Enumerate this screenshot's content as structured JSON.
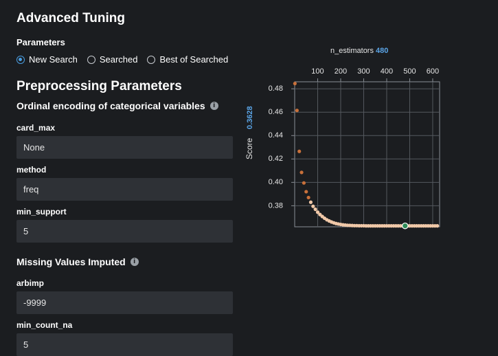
{
  "page": {
    "title": "Advanced Tuning",
    "parameters_label": "Parameters",
    "search_options": [
      {
        "label": "New Search",
        "selected": true
      },
      {
        "label": "Searched",
        "selected": false
      },
      {
        "label": "Best of Searched",
        "selected": false
      }
    ]
  },
  "preprocessing": {
    "title": "Preprocessing Parameters",
    "ordinal": {
      "title": "Ordinal encoding of categorical variables",
      "fields": [
        {
          "label": "card_max",
          "value": "None"
        },
        {
          "label": "method",
          "value": "freq"
        },
        {
          "label": "min_support",
          "value": "5"
        }
      ]
    },
    "missing": {
      "title": "Missing Values Imputed",
      "fields": [
        {
          "label": "arbimp",
          "value": "-9999"
        },
        {
          "label": "min_count_na",
          "value": "5"
        }
      ]
    }
  },
  "info_icon_glyph": "i",
  "chart_header": {
    "param_name": "n_estimators",
    "param_value": "480",
    "score_label": "Score",
    "score_value": "0.3628"
  },
  "colors": {
    "accent_blue": "#5aa4e6",
    "point_early": "#c8703a",
    "point_late": "#f0c8a8",
    "selected_point": "#2e8b57"
  },
  "chart_data": {
    "type": "scatter",
    "xlabel": "n_estimators",
    "ylabel": "Score",
    "x_ticks": [
      100,
      200,
      300,
      400,
      500,
      600
    ],
    "y_ticks": [
      0.38,
      0.4,
      0.42,
      0.44,
      0.46,
      0.48
    ],
    "xlim": [
      0,
      630
    ],
    "ylim": [
      0.362,
      0.486
    ],
    "grid": true,
    "selected": {
      "x": 480,
      "y": 0.3628
    },
    "points": [
      {
        "x": 1,
        "y": 0.4845
      },
      {
        "x": 10,
        "y": 0.4615
      },
      {
        "x": 20,
        "y": 0.4265
      },
      {
        "x": 30,
        "y": 0.4085
      },
      {
        "x": 40,
        "y": 0.3995
      },
      {
        "x": 50,
        "y": 0.392
      },
      {
        "x": 60,
        "y": 0.387
      },
      {
        "x": 70,
        "y": 0.383
      },
      {
        "x": 80,
        "y": 0.3795
      },
      {
        "x": 90,
        "y": 0.377
      },
      {
        "x": 100,
        "y": 0.3745
      },
      {
        "x": 110,
        "y": 0.3725
      },
      {
        "x": 120,
        "y": 0.3708
      },
      {
        "x": 130,
        "y": 0.3693
      },
      {
        "x": 140,
        "y": 0.368
      },
      {
        "x": 150,
        "y": 0.367
      },
      {
        "x": 160,
        "y": 0.3661
      },
      {
        "x": 170,
        "y": 0.3654
      },
      {
        "x": 180,
        "y": 0.3648
      },
      {
        "x": 190,
        "y": 0.3644
      },
      {
        "x": 200,
        "y": 0.364
      },
      {
        "x": 210,
        "y": 0.3637
      },
      {
        "x": 220,
        "y": 0.3635
      },
      {
        "x": 230,
        "y": 0.3633
      },
      {
        "x": 240,
        "y": 0.3632
      },
      {
        "x": 250,
        "y": 0.3631
      },
      {
        "x": 260,
        "y": 0.363
      },
      {
        "x": 270,
        "y": 0.363
      },
      {
        "x": 280,
        "y": 0.3629
      },
      {
        "x": 290,
        "y": 0.3629
      },
      {
        "x": 300,
        "y": 0.3629
      },
      {
        "x": 310,
        "y": 0.3628
      },
      {
        "x": 320,
        "y": 0.3628
      },
      {
        "x": 330,
        "y": 0.3628
      },
      {
        "x": 340,
        "y": 0.3628
      },
      {
        "x": 350,
        "y": 0.3628
      },
      {
        "x": 360,
        "y": 0.3628
      },
      {
        "x": 370,
        "y": 0.3628
      },
      {
        "x": 380,
        "y": 0.3628
      },
      {
        "x": 390,
        "y": 0.3628
      },
      {
        "x": 400,
        "y": 0.3628
      },
      {
        "x": 410,
        "y": 0.3628
      },
      {
        "x": 420,
        "y": 0.3628
      },
      {
        "x": 430,
        "y": 0.3628
      },
      {
        "x": 440,
        "y": 0.3628
      },
      {
        "x": 450,
        "y": 0.3628
      },
      {
        "x": 460,
        "y": 0.3628
      },
      {
        "x": 470,
        "y": 0.3628
      },
      {
        "x": 490,
        "y": 0.3628
      },
      {
        "x": 500,
        "y": 0.3628
      },
      {
        "x": 510,
        "y": 0.3628
      },
      {
        "x": 520,
        "y": 0.3628
      },
      {
        "x": 530,
        "y": 0.3628
      },
      {
        "x": 540,
        "y": 0.3628
      },
      {
        "x": 550,
        "y": 0.3628
      },
      {
        "x": 560,
        "y": 0.3628
      },
      {
        "x": 570,
        "y": 0.3628
      },
      {
        "x": 580,
        "y": 0.3628
      },
      {
        "x": 590,
        "y": 0.3628
      },
      {
        "x": 600,
        "y": 0.3628
      },
      {
        "x": 610,
        "y": 0.3628
      },
      {
        "x": 620,
        "y": 0.3628
      }
    ]
  }
}
